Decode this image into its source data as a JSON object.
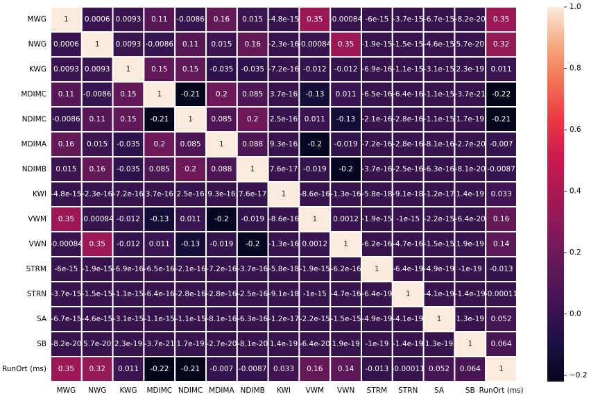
{
  "chart_data": {
    "type": "heatmap",
    "title": "",
    "xlabel": "",
    "ylabel": "",
    "x_labels": [
      "MWG",
      "NWG",
      "KWG",
      "MDIMC",
      "NDIMC",
      "MDIMA",
      "NDIMB",
      "KWI",
      "VWM",
      "VWN",
      "STRM",
      "STRN",
      "SA",
      "SB",
      "RunOrt (ms)"
    ],
    "y_labels": [
      "MWG",
      "NWG",
      "KWG",
      "MDIMC",
      "NDIMC",
      "MDIMA",
      "NDIMB",
      "KWI",
      "VWM",
      "VWN",
      "STRM",
      "STRN",
      "SA",
      "SB",
      "RunOrt (ms)"
    ],
    "values": [
      [
        1,
        0.0006,
        0.0093,
        0.11,
        -0.0086,
        0.16,
        0.015,
        -4.8e-15,
        0.35,
        -0.00084,
        -6e-15,
        -3.7e-15,
        -6.7e-15,
        -8.2e-20,
        0.35
      ],
      [
        0.0006,
        1,
        0.0093,
        -0.0086,
        0.11,
        0.015,
        0.16,
        -2.3e-16,
        -0.00084,
        0.35,
        -1.9e-15,
        -1.5e-15,
        -4.6e-15,
        5.7e-20,
        0.32
      ],
      [
        0.0093,
        0.0093,
        1,
        0.15,
        0.15,
        -0.035,
        -0.035,
        -7.2e-16,
        -0.012,
        -0.012,
        -6.9e-16,
        -1.1e-15,
        -3.1e-15,
        2.3e-19,
        0.011
      ],
      [
        0.11,
        -0.0086,
        0.15,
        1,
        -0.21,
        0.2,
        0.085,
        3.7e-16,
        -0.13,
        0.011,
        -6.5e-16,
        -6.4e-16,
        -1.1e-15,
        -3.7e-21,
        -0.22
      ],
      [
        -0.0086,
        0.11,
        0.15,
        -0.21,
        1,
        0.085,
        0.2,
        2.5e-16,
        0.011,
        -0.13,
        -2.1e-16,
        -2.8e-16,
        -1.1e-15,
        1.7e-19,
        -0.21
      ],
      [
        0.16,
        0.015,
        -0.035,
        0.2,
        0.085,
        1,
        0.088,
        9.3e-16,
        -0.2,
        -0.019,
        -7.2e-16,
        -2.8e-16,
        -8.1e-16,
        -2.7e-20,
        -0.007
      ],
      [
        0.015,
        0.16,
        -0.035,
        0.085,
        0.2,
        0.088,
        1,
        7.6e-17,
        -0.019,
        -0.2,
        -3.7e-16,
        -2.5e-16,
        -6.3e-16,
        -8.1e-20,
        -0.0087
      ],
      [
        -4.8e-15,
        -2.3e-16,
        -7.2e-16,
        3.7e-16,
        2.5e-16,
        9.3e-16,
        7.6e-17,
        1,
        -8.6e-16,
        -1.3e-16,
        -5.8e-18,
        -9.1e-18,
        -1.2e-17,
        1.4e-19,
        0.033
      ],
      [
        0.35,
        -0.00084,
        -0.012,
        -0.13,
        0.011,
        -0.2,
        -0.019,
        -8.6e-16,
        1,
        0.0012,
        -1.9e-15,
        -1e-15,
        -2.2e-15,
        -6.4e-20,
        0.16
      ],
      [
        -0.00084,
        0.35,
        -0.012,
        0.011,
        -0.13,
        -0.019,
        -0.2,
        -1.3e-16,
        0.0012,
        1,
        -6.2e-16,
        -4.7e-16,
        -1.5e-15,
        1.9e-19,
        0.14
      ],
      [
        -6e-15,
        -1.9e-15,
        -6.9e-16,
        -6.5e-16,
        -2.1e-16,
        -7.2e-16,
        -3.7e-16,
        -5.8e-18,
        -1.9e-15,
        -6.2e-16,
        1,
        -6.4e-19,
        -4.9e-19,
        -1e-19,
        -0.013
      ],
      [
        -3.7e-15,
        -1.5e-15,
        -1.1e-15,
        -6.4e-16,
        -2.8e-16,
        -2.8e-16,
        -2.5e-16,
        -9.1e-18,
        -1e-15,
        -4.7e-16,
        -6.4e-19,
        1,
        -4.1e-19,
        -1.4e-19,
        -0.00011
      ],
      [
        -6.7e-15,
        -4.6e-15,
        -3.1e-15,
        -1.1e-15,
        -1.1e-15,
        -8.1e-16,
        -6.3e-16,
        -1.2e-17,
        -2.2e-15,
        -1.5e-15,
        -4.9e-19,
        -4.1e-19,
        1,
        1.3e-19,
        0.052
      ],
      [
        -8.2e-20,
        5.7e-20,
        2.3e-19,
        -3.7e-21,
        1.7e-19,
        -2.7e-20,
        -8.1e-20,
        1.4e-19,
        -6.4e-20,
        1.9e-19,
        -1e-19,
        -1.4e-19,
        1.3e-19,
        1,
        0.064
      ],
      [
        0.35,
        0.32,
        0.011,
        -0.22,
        -0.21,
        -0.007,
        -0.0087,
        0.033,
        0.16,
        0.14,
        -0.013,
        -0.00011,
        0.052,
        0.064,
        1
      ]
    ],
    "annotations": [
      [
        "1",
        "0.0006",
        "0.0093",
        "0.11",
        "-0.0086",
        "0.16",
        "0.015",
        "-4.8e-15",
        "0.35",
        "-0.00084",
        "-6e-15",
        "-3.7e-15",
        "-6.7e-15",
        "-8.2e-20",
        "0.35"
      ],
      [
        "0.0006",
        "1",
        "0.0093",
        "-0.0086",
        "0.11",
        "0.015",
        "0.16",
        "-2.3e-16",
        "-0.00084",
        "0.35",
        "-1.9e-15",
        "-1.5e-15",
        "-4.6e-15",
        "5.7e-20",
        "0.32"
      ],
      [
        "0.0093",
        "0.0093",
        "1",
        "0.15",
        "0.15",
        "-0.035",
        "-0.035",
        "-7.2e-16",
        "-0.012",
        "-0.012",
        "-6.9e-16",
        "-1.1e-15",
        "-3.1e-15",
        "2.3e-19",
        "0.011"
      ],
      [
        "0.11",
        "-0.0086",
        "0.15",
        "1",
        "-0.21",
        "0.2",
        "0.085",
        "3.7e-16",
        "-0.13",
        "0.011",
        "-6.5e-16",
        "-6.4e-16",
        "-1.1e-15",
        "-3.7e-21",
        "-0.22"
      ],
      [
        "-0.0086",
        "0.11",
        "0.15",
        "-0.21",
        "1",
        "0.085",
        "0.2",
        "2.5e-16",
        "0.011",
        "-0.13",
        "-2.1e-16",
        "-2.8e-16",
        "-1.1e-15",
        "1.7e-19",
        "-0.21"
      ],
      [
        "0.16",
        "0.015",
        "-0.035",
        "0.2",
        "0.085",
        "1",
        "0.088",
        "9.3e-16",
        "-0.2",
        "-0.019",
        "-7.2e-16",
        "-2.8e-16",
        "-8.1e-16",
        "-2.7e-20",
        "-0.007"
      ],
      [
        "0.015",
        "0.16",
        "-0.035",
        "0.085",
        "0.2",
        "0.088",
        "1",
        "7.6e-17",
        "-0.019",
        "-0.2",
        "-3.7e-16",
        "-2.5e-16",
        "-6.3e-16",
        "-8.1e-20",
        "-0.0087"
      ],
      [
        "-4.8e-15",
        "-2.3e-16",
        "-7.2e-16",
        "3.7e-16",
        "2.5e-16",
        "9.3e-16",
        "7.6e-17",
        "1",
        "-8.6e-16",
        "-1.3e-16",
        "-5.8e-18",
        "-9.1e-18",
        "-1.2e-17",
        "1.4e-19",
        "0.033"
      ],
      [
        "0.35",
        "-0.00084",
        "-0.012",
        "-0.13",
        "0.011",
        "-0.2",
        "-0.019",
        "-8.6e-16",
        "1",
        "0.0012",
        "-1.9e-15",
        "-1e-15",
        "-2.2e-15",
        "-6.4e-20",
        "0.16"
      ],
      [
        "-0.00084",
        "0.35",
        "-0.012",
        "0.011",
        "-0.13",
        "-0.019",
        "-0.2",
        "-1.3e-16",
        "0.0012",
        "1",
        "-6.2e-16",
        "-4.7e-16",
        "-1.5e-15",
        "1.9e-19",
        "0.14"
      ],
      [
        "-6e-15",
        "-1.9e-15",
        "-6.9e-16",
        "-6.5e-16",
        "-2.1e-16",
        "-7.2e-16",
        "-3.7e-16",
        "-5.8e-18",
        "-1.9e-15",
        "-6.2e-16",
        "1",
        "-6.4e-19",
        "-4.9e-19",
        "-1e-19",
        "-0.013"
      ],
      [
        "-3.7e-15",
        "-1.5e-15",
        "-1.1e-15",
        "-6.4e-16",
        "-2.8e-16",
        "-2.8e-16",
        "-2.5e-16",
        "-9.1e-18",
        "-1e-15",
        "-4.7e-16",
        "-6.4e-19",
        "1",
        "-4.1e-19",
        "-1.4e-19",
        "-0.00011"
      ],
      [
        "-6.7e-15",
        "-4.6e-15",
        "-3.1e-15",
        "-1.1e-15",
        "-1.1e-15",
        "-8.1e-16",
        "-6.3e-16",
        "-1.2e-17",
        "-2.2e-15",
        "-1.5e-15",
        "-4.9e-19",
        "-4.1e-19",
        "1",
        "1.3e-19",
        "0.052"
      ],
      [
        "-8.2e-20",
        "5.7e-20",
        "2.3e-19",
        "-3.7e-21",
        "1.7e-19",
        "-2.7e-20",
        "-8.1e-20",
        "1.4e-19",
        "-6.4e-20",
        "1.9e-19",
        "-1e-19",
        "-1.4e-19",
        "1.3e-19",
        "1",
        "0.064"
      ],
      [
        "0.35",
        "0.32",
        "0.011",
        "-0.22",
        "-0.21",
        "-0.007",
        "-0.0087",
        "0.033",
        "0.16",
        "0.14",
        "-0.013",
        "-0.00011",
        "0.052",
        "0.064",
        "1"
      ]
    ],
    "colorbar": {
      "vmin": -0.22,
      "vmax": 1,
      "ticks": [
        -0.2,
        0.0,
        0.2,
        0.4,
        0.6,
        0.8,
        1.0
      ],
      "tick_labels": [
        "−0.2",
        "0.0",
        "0.2",
        "0.4",
        "0.6",
        "0.8",
        "1.0"
      ],
      "colormap": "rocket"
    },
    "grid": true,
    "grid_color": "#ffffff",
    "annotation_colors": {
      "light": "#ffffff",
      "dark": "#262626"
    }
  }
}
